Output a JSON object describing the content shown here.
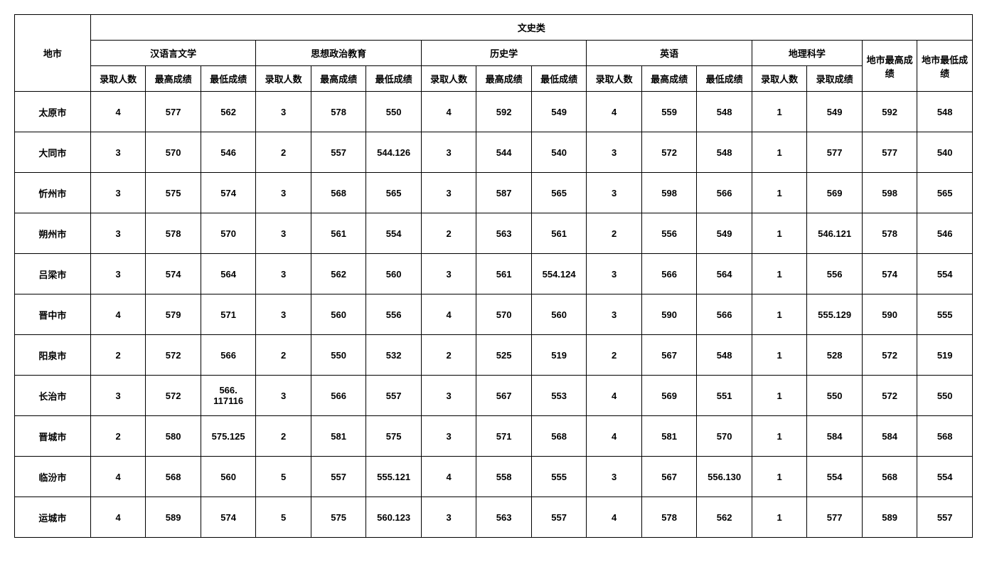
{
  "table": {
    "category_header": "文史类",
    "city_header": "地市",
    "subjects": [
      "汉语言文学",
      "思想政治教育",
      "历史学",
      "英语",
      "地理科学"
    ],
    "sub_headers_3col": [
      "录取人数",
      "最高成绩",
      "最低成绩"
    ],
    "sub_headers_2col": [
      "录取人数",
      "录取成绩"
    ],
    "city_max_header": "地市最高成绩",
    "city_min_header": "地市最低成绩",
    "rows": [
      {
        "city": "太原市",
        "cells": [
          "4",
          "577",
          "562",
          "3",
          "578",
          "550",
          "4",
          "592",
          "549",
          "4",
          "559",
          "548",
          "1",
          "549",
          "592",
          "548"
        ]
      },
      {
        "city": "大同市",
        "cells": [
          "3",
          "570",
          "546",
          "2",
          "557",
          "544.126",
          "3",
          "544",
          "540",
          "3",
          "572",
          "548",
          "1",
          "577",
          "577",
          "540"
        ]
      },
      {
        "city": "忻州市",
        "cells": [
          "3",
          "575",
          "574",
          "3",
          "568",
          "565",
          "3",
          "587",
          "565",
          "3",
          "598",
          "566",
          "1",
          "569",
          "598",
          "565"
        ]
      },
      {
        "city": "朔州市",
        "cells": [
          "3",
          "578",
          "570",
          "3",
          "561",
          "554",
          "2",
          "563",
          "561",
          "2",
          "556",
          "549",
          "1",
          "546.121",
          "578",
          "546"
        ]
      },
      {
        "city": "吕梁市",
        "cells": [
          "3",
          "574",
          "564",
          "3",
          "562",
          "560",
          "3",
          "561",
          "554.124",
          "3",
          "566",
          "564",
          "1",
          "556",
          "574",
          "554"
        ]
      },
      {
        "city": "晋中市",
        "cells": [
          "4",
          "579",
          "571",
          "3",
          "560",
          "556",
          "4",
          "570",
          "560",
          "3",
          "590",
          "566",
          "1",
          "555.129",
          "590",
          "555"
        ]
      },
      {
        "city": "阳泉市",
        "cells": [
          "2",
          "572",
          "566",
          "2",
          "550",
          "532",
          "2",
          "525",
          "519",
          "2",
          "567",
          "548",
          "1",
          "528",
          "572",
          "519"
        ]
      },
      {
        "city": "长治市",
        "cells": [
          "3",
          "572",
          "566. 117116",
          "3",
          "566",
          "557",
          "3",
          "567",
          "553",
          "4",
          "569",
          "551",
          "1",
          "550",
          "572",
          "550"
        ]
      },
      {
        "city": "晋城市",
        "cells": [
          "2",
          "580",
          "575.125",
          "2",
          "581",
          "575",
          "3",
          "571",
          "568",
          "4",
          "581",
          "570",
          "1",
          "584",
          "584",
          "568"
        ]
      },
      {
        "city": "临汾市",
        "cells": [
          "4",
          "568",
          "560",
          "5",
          "557",
          "555.121",
          "4",
          "558",
          "555",
          "3",
          "567",
          "556.130",
          "1",
          "554",
          "568",
          "554"
        ]
      },
      {
        "city": "运城市",
        "cells": [
          "4",
          "589",
          "574",
          "5",
          "575",
          "560.123",
          "3",
          "563",
          "557",
          "4",
          "578",
          "562",
          "1",
          "577",
          "589",
          "557"
        ]
      }
    ],
    "background_color": "#ffffff",
    "border_color": "#000000",
    "header_fontsize": 13,
    "cell_fontsize": 13
  }
}
